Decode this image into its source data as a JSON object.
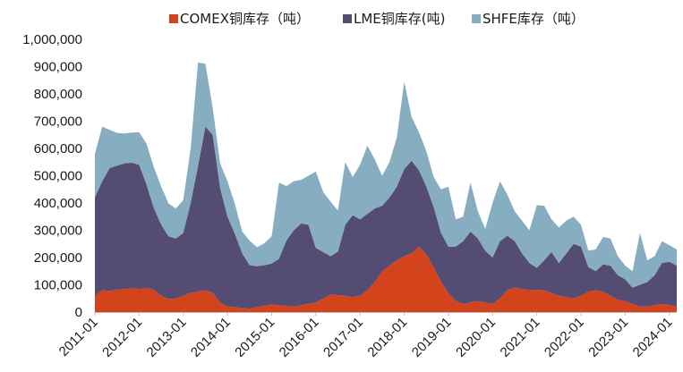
{
  "chart_data": {
    "type": "area",
    "stacked": true,
    "legend_position": "top",
    "grid": false,
    "title": "",
    "xlabel": "",
    "ylabel": "",
    "ylim": [
      0,
      1000000
    ],
    "y_ticks": [
      0,
      100000,
      200000,
      300000,
      400000,
      500000,
      600000,
      700000,
      800000,
      900000,
      1000000
    ],
    "y_tick_labels": [
      "0",
      "100,000",
      "200,000",
      "300,000",
      "400,000",
      "500,000",
      "600,000",
      "700,000",
      "800,000",
      "900,000",
      "1,000,000"
    ],
    "x_ticks": [
      "2011-01",
      "2012-01",
      "2013-01",
      "2014-01",
      "2015-01",
      "2016-01",
      "2017-01",
      "2018-01",
      "2019-01",
      "2020-01",
      "2021-01",
      "2022-01",
      "2023-01",
      "2024-01"
    ],
    "x": [
      "2011-01",
      "2011-03",
      "2011-05",
      "2011-07",
      "2011-09",
      "2011-11",
      "2012-01",
      "2012-03",
      "2012-05",
      "2012-07",
      "2012-09",
      "2012-11",
      "2013-01",
      "2013-03",
      "2013-05",
      "2013-07",
      "2013-09",
      "2013-11",
      "2014-01",
      "2014-03",
      "2014-05",
      "2014-07",
      "2014-09",
      "2014-11",
      "2015-01",
      "2015-03",
      "2015-05",
      "2015-07",
      "2015-09",
      "2015-11",
      "2016-01",
      "2016-03",
      "2016-05",
      "2016-07",
      "2016-09",
      "2016-11",
      "2017-01",
      "2017-03",
      "2017-05",
      "2017-07",
      "2017-09",
      "2017-11",
      "2018-01",
      "2018-03",
      "2018-05",
      "2018-07",
      "2018-09",
      "2018-11",
      "2019-01",
      "2019-03",
      "2019-05",
      "2019-07",
      "2019-09",
      "2019-11",
      "2020-01",
      "2020-03",
      "2020-05",
      "2020-07",
      "2020-09",
      "2020-11",
      "2021-01",
      "2021-03",
      "2021-05",
      "2021-07",
      "2021-09",
      "2021-11",
      "2022-01",
      "2022-03",
      "2022-05",
      "2022-07",
      "2022-09",
      "2022-11",
      "2023-01",
      "2023-03",
      "2023-05",
      "2023-07",
      "2023-09",
      "2023-11",
      "2024-01",
      "2024-03"
    ],
    "series": [
      {
        "name": "COMEX铜库存（吨）",
        "color": "#d4441c",
        "values": [
          60000,
          80000,
          78000,
          82000,
          85000,
          88000,
          85000,
          88000,
          82000,
          60000,
          48000,
          50000,
          60000,
          70000,
          75000,
          80000,
          70000,
          35000,
          20000,
          18000,
          15000,
          12000,
          18000,
          22000,
          28000,
          25000,
          22000,
          20000,
          25000,
          30000,
          35000,
          50000,
          65000,
          62000,
          60000,
          55000,
          60000,
          80000,
          110000,
          150000,
          170000,
          190000,
          205000,
          215000,
          240000,
          210000,
          165000,
          110000,
          70000,
          40000,
          30000,
          35000,
          40000,
          35000,
          30000,
          50000,
          80000,
          90000,
          85000,
          80000,
          82000,
          80000,
          70000,
          60000,
          55000,
          50000,
          60000,
          75000,
          80000,
          75000,
          60000,
          45000,
          40000,
          30000,
          20000,
          20000,
          25000,
          30000,
          25000,
          20000
        ]
      },
      {
        "name": "LME铜库存(吨)",
        "color": "#554c73",
        "values": [
          360000,
          400000,
          450000,
          455000,
          460000,
          460000,
          455000,
          380000,
          300000,
          260000,
          230000,
          220000,
          230000,
          330000,
          460000,
          600000,
          580000,
          420000,
          330000,
          270000,
          200000,
          160000,
          150000,
          150000,
          150000,
          170000,
          240000,
          280000,
          300000,
          290000,
          200000,
          170000,
          140000,
          160000,
          260000,
          300000,
          280000,
          280000,
          270000,
          240000,
          250000,
          270000,
          320000,
          340000,
          280000,
          250000,
          220000,
          180000,
          170000,
          200000,
          230000,
          260000,
          230000,
          190000,
          170000,
          210000,
          200000,
          170000,
          130000,
          100000,
          80000,
          110000,
          150000,
          120000,
          160000,
          200000,
          180000,
          90000,
          70000,
          100000,
          110000,
          90000,
          80000,
          60000,
          80000,
          90000,
          110000,
          150000,
          160000,
          150000
        ]
      },
      {
        "name": "SHFE库存（吨）",
        "color": "#86adc0",
        "values": [
          160000,
          200000,
          140000,
          120000,
          110000,
          110000,
          120000,
          150000,
          150000,
          140000,
          120000,
          110000,
          120000,
          200000,
          380000,
          230000,
          100000,
          90000,
          130000,
          110000,
          80000,
          90000,
          70000,
          80000,
          100000,
          280000,
          200000,
          180000,
          160000,
          180000,
          280000,
          220000,
          200000,
          150000,
          230000,
          140000,
          200000,
          250000,
          180000,
          110000,
          130000,
          180000,
          320000,
          160000,
          140000,
          130000,
          110000,
          160000,
          220000,
          100000,
          90000,
          180000,
          100000,
          80000,
          200000,
          220000,
          150000,
          110000,
          120000,
          120000,
          230000,
          200000,
          120000,
          130000,
          120000,
          100000,
          80000,
          60000,
          80000,
          100000,
          100000,
          70000,
          50000,
          60000,
          190000,
          80000,
          70000,
          80000,
          60000,
          60000
        ]
      }
    ]
  }
}
